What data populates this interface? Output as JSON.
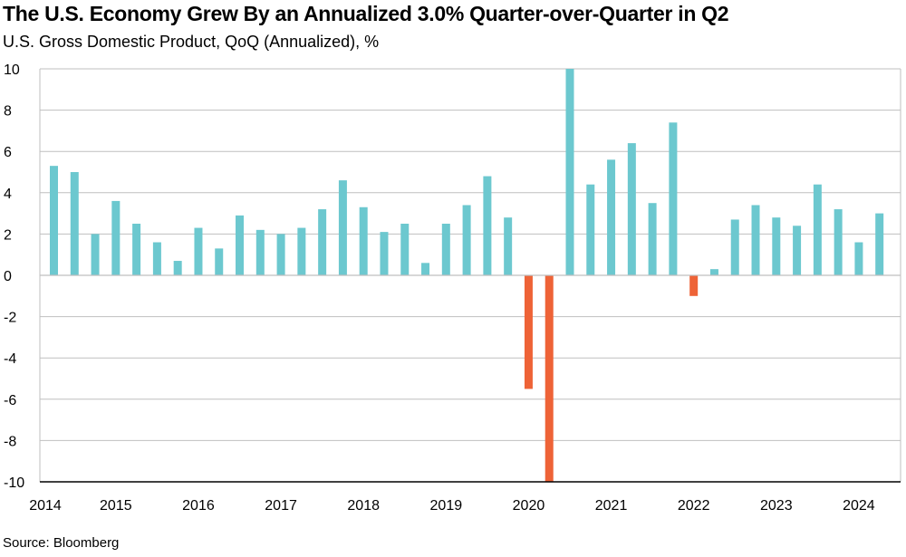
{
  "title": "The U.S. Economy Grew By an Annualized 3.0% Quarter-over-Quarter in Q2",
  "subtitle": "U.S. Gross Domestic Product, QoQ (Annualized), %",
  "source": "Source: Bloomberg",
  "colors": {
    "positive": "#6CC8CF",
    "negative": "#EE6337",
    "grid": "#BFBFBF",
    "axis": "#000000"
  },
  "chart_data": {
    "type": "bar",
    "title": "The U.S. Economy Grew By an Annualized 3.0% Quarter-over-Quarter in Q2",
    "subtitle": "U.S. Gross Domestic Product, QoQ (Annualized), %",
    "xlabel": "",
    "ylabel": "",
    "ylim": [
      -10,
      10
    ],
    "yticks": [
      10,
      8,
      6,
      4,
      2,
      0,
      -2,
      -4,
      -6,
      -8,
      -10
    ],
    "xtick_labels": [
      "2014",
      "2015",
      "2016",
      "2017",
      "2018",
      "2019",
      "2020",
      "2021",
      "2022",
      "2023",
      "2024"
    ],
    "grid": true,
    "legend": "none",
    "categories": [
      "2014 Q2",
      "2014 Q3",
      "2014 Q4",
      "2015 Q1",
      "2015 Q2",
      "2015 Q3",
      "2015 Q4",
      "2016 Q1",
      "2016 Q2",
      "2016 Q3",
      "2016 Q4",
      "2017 Q1",
      "2017 Q2",
      "2017 Q3",
      "2017 Q4",
      "2018 Q1",
      "2018 Q2",
      "2018 Q3",
      "2018 Q4",
      "2019 Q1",
      "2019 Q2",
      "2019 Q3",
      "2019 Q4",
      "2020 Q1",
      "2020 Q2",
      "2020 Q3",
      "2020 Q4",
      "2021 Q1",
      "2021 Q2",
      "2021 Q3",
      "2021 Q4",
      "2022 Q1",
      "2022 Q2",
      "2022 Q3",
      "2022 Q4",
      "2023 Q1",
      "2023 Q2",
      "2023 Q3",
      "2023 Q4",
      "2024 Q1",
      "2024 Q2"
    ],
    "values": [
      5.3,
      5.0,
      2.0,
      3.6,
      2.5,
      1.6,
      0.7,
      2.3,
      1.3,
      2.9,
      2.2,
      2.0,
      2.3,
      3.2,
      4.6,
      3.3,
      2.1,
      2.5,
      0.6,
      2.5,
      3.4,
      4.8,
      2.8,
      -5.5,
      -10.0,
      10.0,
      4.4,
      5.6,
      6.4,
      3.5,
      7.4,
      -1.0,
      0.3,
      2.7,
      3.4,
      2.8,
      2.4,
      4.4,
      3.2,
      1.6,
      3.0
    ]
  }
}
